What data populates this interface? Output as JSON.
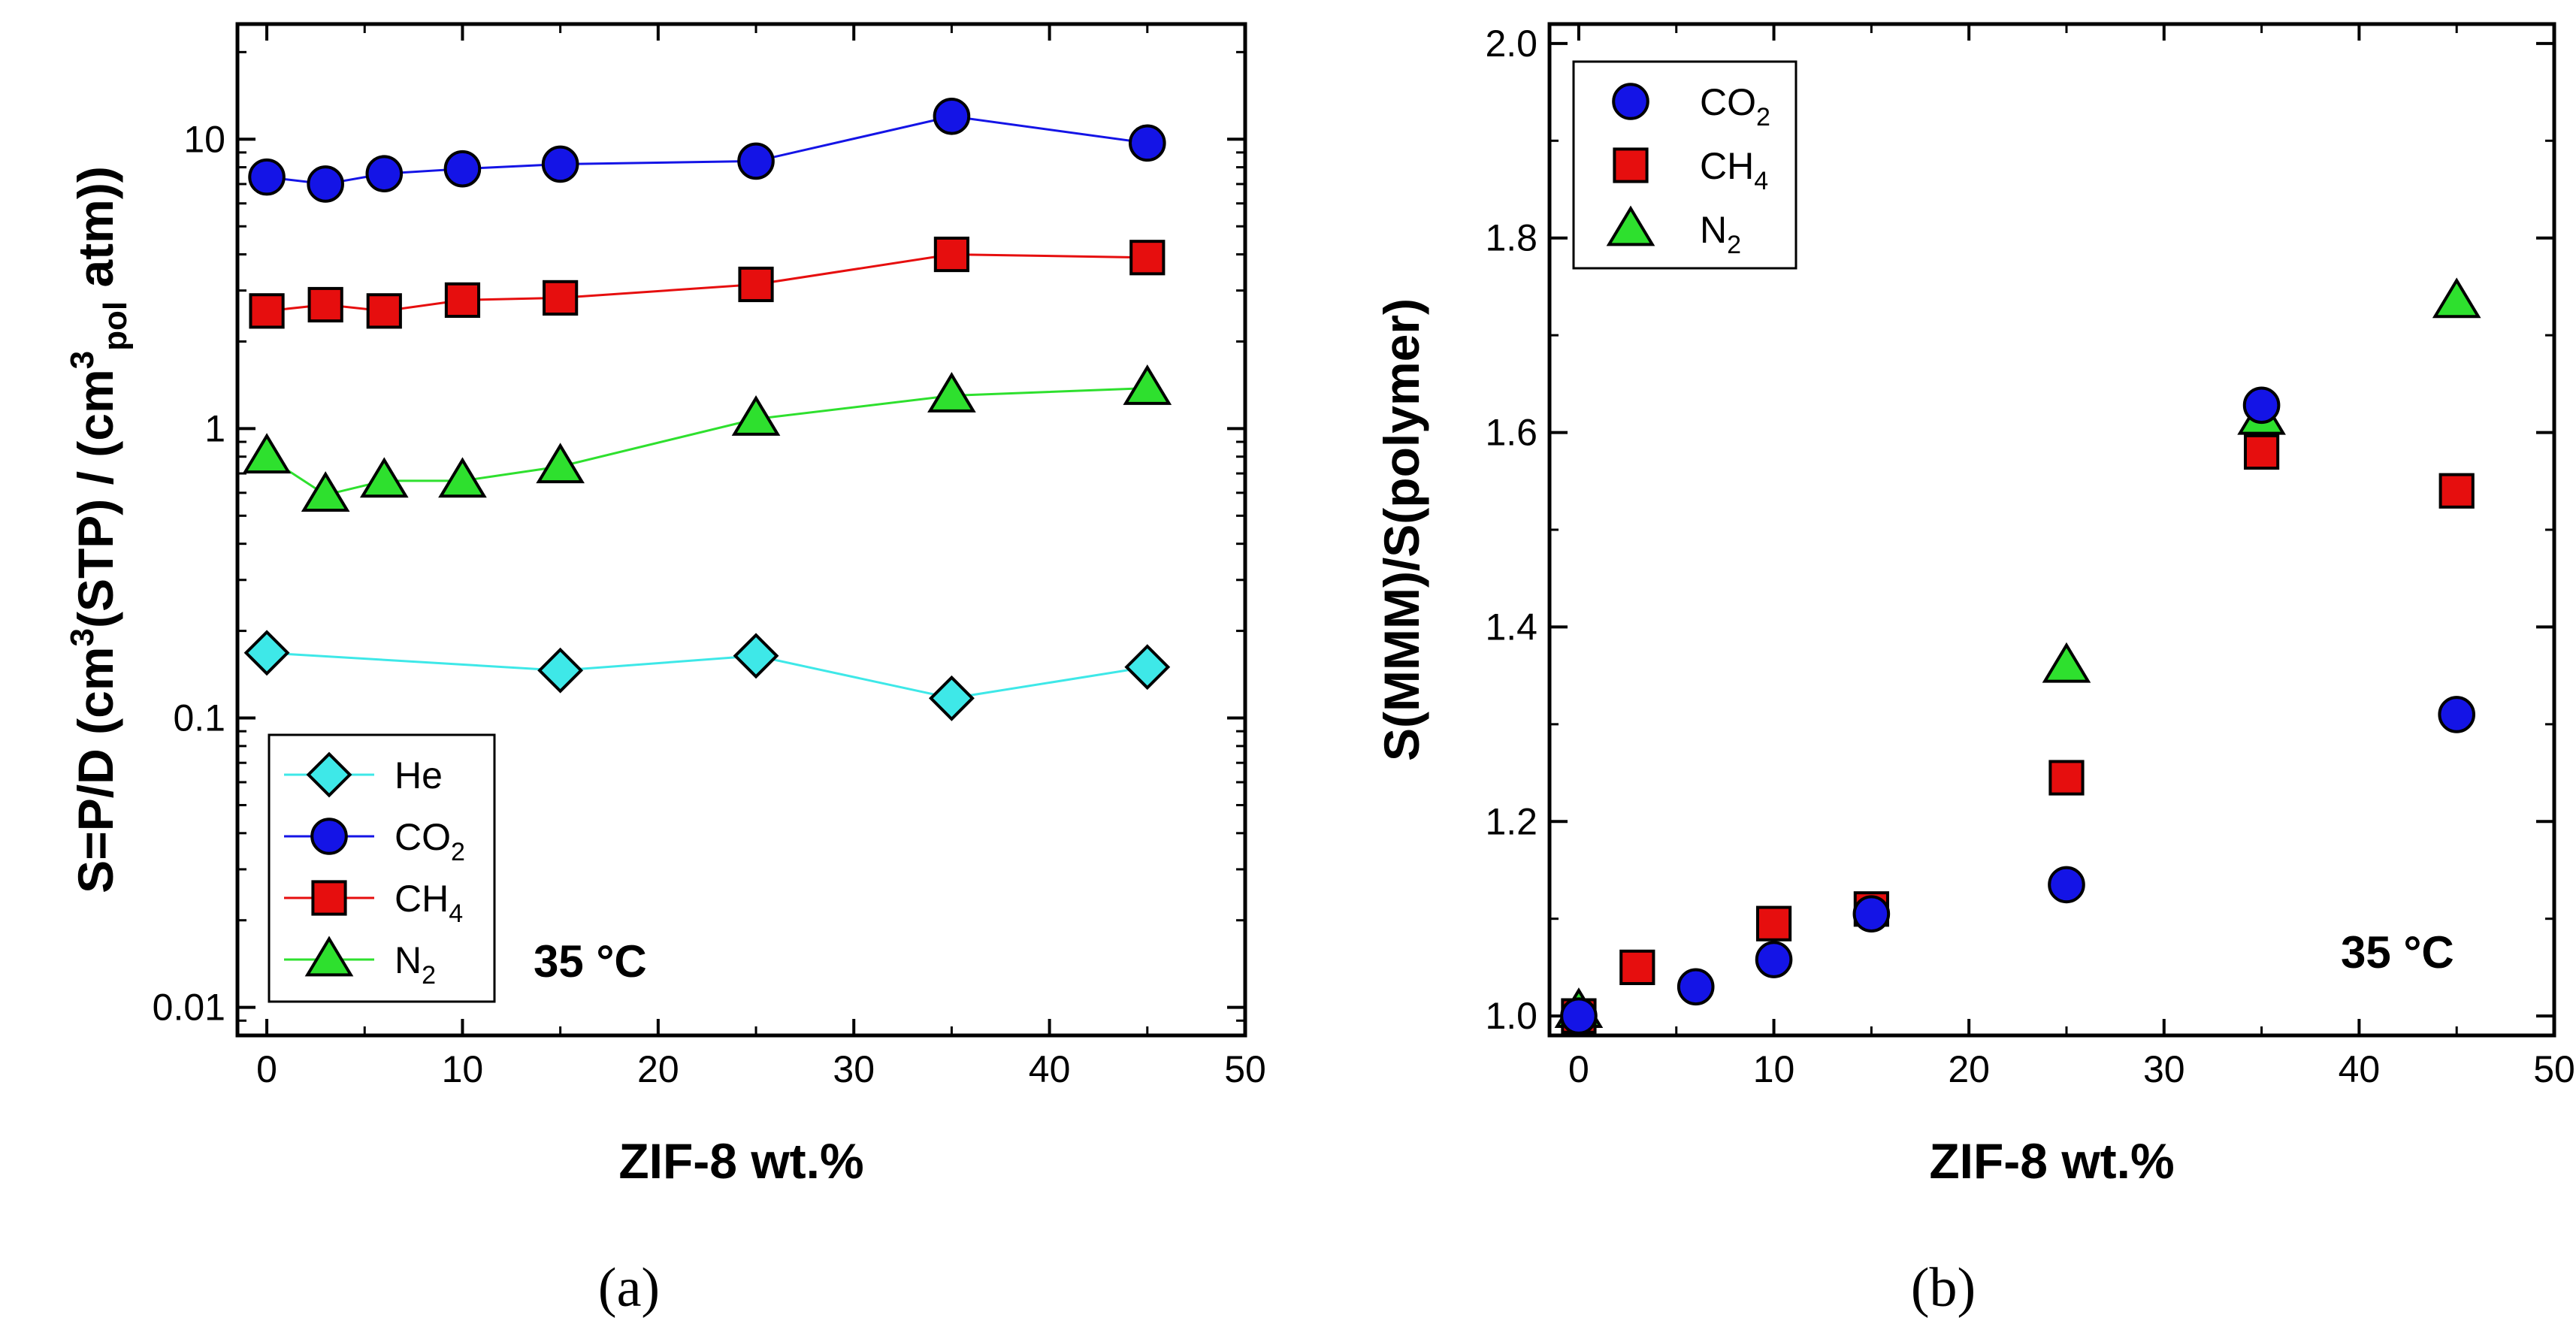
{
  "chart_data": [
    {
      "type": "line",
      "panel_label": "(a)",
      "xlabel": "ZIF-8 wt.%",
      "ylabel": {
        "prefix": "S=P/D (cm",
        "sup1": "3",
        "mid": "(STP) / (cm",
        "sup2": "3",
        "sub": "pol",
        "suffix": " atm))"
      },
      "yscale": "log",
      "xlim": [
        -1.5,
        50
      ],
      "ylim": [
        0.008,
        25
      ],
      "x_ticks": [
        0,
        10,
        20,
        30,
        40,
        50
      ],
      "y_ticks": [
        0.01,
        0.1,
        1,
        10
      ],
      "y_tick_labels": [
        "0.01",
        "0.1",
        "1",
        "10"
      ],
      "annotation": "35 °C",
      "legend_position": "bottom-left",
      "series": [
        {
          "name": "He",
          "label_main": "He",
          "label_sub": "",
          "marker": "diamond",
          "color": "#3EE8E8",
          "line_color": "#3EE8E8",
          "x": [
            0,
            15,
            25,
            35,
            45
          ],
          "y": [
            0.168,
            0.146,
            0.164,
            0.117,
            0.15
          ]
        },
        {
          "name": "CO2",
          "label_main": "CO",
          "label_sub": "2",
          "marker": "circle",
          "color": "#1414E6",
          "line_color": "#1414E6",
          "x": [
            0,
            3,
            6,
            10,
            15,
            25,
            35,
            45
          ],
          "y": [
            7.4,
            7.0,
            7.6,
            7.9,
            8.2,
            8.4,
            12.0,
            9.7
          ]
        },
        {
          "name": "CH4",
          "label_main": "CH",
          "label_sub": "4",
          "marker": "square",
          "color": "#E60E0E",
          "line_color": "#E60E0E",
          "x": [
            0,
            3,
            6,
            10,
            15,
            25,
            35,
            45
          ],
          "y": [
            2.55,
            2.68,
            2.55,
            2.78,
            2.83,
            3.15,
            4.0,
            3.9
          ]
        },
        {
          "name": "N2",
          "label_main": "N",
          "label_sub": "2",
          "marker": "triangle",
          "color": "#2EE02E",
          "line_color": "#2EE02E",
          "x": [
            0,
            3,
            6,
            10,
            15,
            25,
            35,
            45
          ],
          "y": [
            0.8,
            0.59,
            0.66,
            0.66,
            0.74,
            1.08,
            1.3,
            1.38
          ]
        }
      ]
    },
    {
      "type": "scatter",
      "panel_label": "(b)",
      "xlabel": "ZIF-8 wt.%",
      "ylabel": "S(MMM)/S(polymer)",
      "xlim": [
        -1.5,
        50
      ],
      "ylim": [
        0.98,
        2.02
      ],
      "x_ticks": [
        0,
        10,
        20,
        30,
        40,
        50
      ],
      "y_ticks": [
        1.0,
        1.2,
        1.4,
        1.6,
        1.8,
        2.0
      ],
      "y_tick_labels": [
        "1.0",
        "1.2",
        "1.4",
        "1.6",
        "1.8",
        "2.0"
      ],
      "annotation": "35 °C",
      "legend_position": "top-left",
      "series": [
        {
          "name": "N2",
          "label_main": "N",
          "label_sub": "2",
          "marker": "triangle",
          "color": "#2EE02E",
          "x": [
            0,
            25,
            35,
            45
          ],
          "y": [
            1.005,
            1.36,
            1.615,
            1.735
          ]
        },
        {
          "name": "CH4",
          "label_main": "CH",
          "label_sub": "4",
          "marker": "square",
          "color": "#E60E0E",
          "x": [
            0,
            3,
            10,
            15,
            25,
            35,
            45
          ],
          "y": [
            1.0,
            1.05,
            1.095,
            1.11,
            1.245,
            1.58,
            1.54
          ]
        },
        {
          "name": "CO2",
          "label_main": "CO",
          "label_sub": "2",
          "marker": "circle",
          "color": "#1414E6",
          "x": [
            0,
            6,
            10,
            15,
            25,
            35,
            45
          ],
          "y": [
            1.0,
            1.03,
            1.058,
            1.105,
            1.135,
            1.628,
            1.31
          ]
        }
      ],
      "legend_order": [
        "CO2",
        "CH4",
        "N2"
      ]
    }
  ]
}
